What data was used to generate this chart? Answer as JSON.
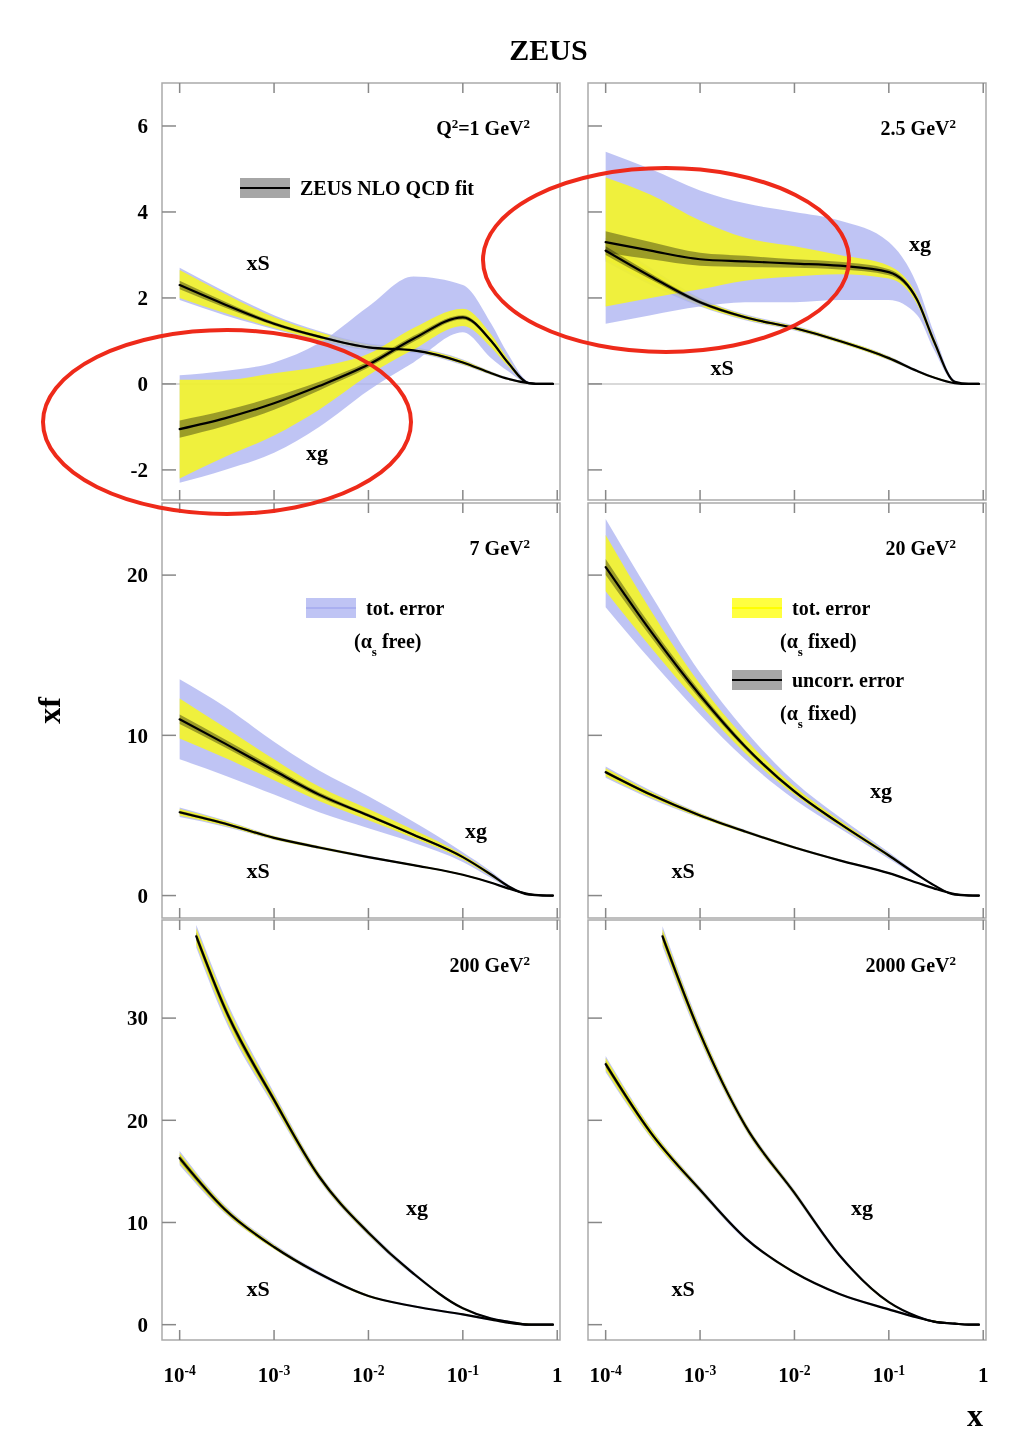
{
  "chart_data": [
    {
      "type": "line",
      "title": "ZEUS",
      "subtitle": "Q$^{2}$=1 GeV$^{2}$",
      "log": "x",
      "tick_labels": "y",
      "legend": "top right",
      "xlim": [
        6.5e-05,
        1.07
      ],
      "ylim": [
        -2.7,
        7
      ],
      "yticks": [
        -2,
        0,
        2,
        4,
        6
      ],
      "xticks": [
        0.0001,
        0.001,
        0.01,
        0.1,
        1
      ],
      "x": [
        0.0001,
        0.0003,
        0.001,
        0.003,
        0.01,
        0.03,
        0.1,
        0.2,
        0.3,
        0.5,
        0.7,
        0.9
      ],
      "ref_lines": [
        {
          "axis": "y",
          "value": 0,
          "color": "#cccccc"
        }
      ],
      "annotations": [
        "xS",
        "xg"
      ],
      "series": [
        {
          "color": "#aab0f0",
          "values": [
            null,
            null,
            null,
            null,
            null,
            null,
            null,
            null,
            null,
            null,
            null,
            null
          ],
          "lower": [
            1.95,
            1.6,
            1.27,
            1.0,
            0.78,
            0.72,
            0.44,
            0.21,
            0.09,
            0.01,
            0,
            0
          ],
          "upper": [
            2.7,
            2.15,
            1.6,
            1.23,
            0.94,
            0.86,
            0.57,
            0.29,
            0.15,
            0.03,
            0,
            0
          ]
        },
        {
          "color": "#ffff00",
          "values": [
            null,
            null,
            null,
            null,
            null,
            null,
            null,
            null,
            null,
            null,
            null,
            null
          ],
          "lower": [
            2.0,
            1.65,
            1.3,
            1.02,
            0.8,
            0.74,
            0.46,
            0.22,
            0.1,
            0.01,
            0,
            0
          ],
          "upper": [
            2.65,
            2.1,
            1.55,
            1.2,
            0.92,
            0.84,
            0.55,
            0.28,
            0.14,
            0.03,
            0,
            0
          ]
        },
        {
          "color": "#aab0f0",
          "values": [
            null,
            null,
            null,
            null,
            null,
            null,
            null,
            null,
            null,
            null,
            null,
            null
          ],
          "lower": [
            -2.3,
            -2.0,
            -1.6,
            -1.0,
            -0.15,
            0.5,
            1.2,
            0.6,
            0.3,
            0.01,
            0,
            0
          ],
          "upper": [
            0.2,
            0.3,
            0.5,
            0.95,
            1.8,
            2.5,
            2.3,
            1.4,
            0.7,
            0.05,
            0,
            0
          ]
        },
        {
          "color": "#ffff00",
          "values": [
            null,
            null,
            null,
            null,
            null,
            null,
            null,
            null,
            null,
            null,
            null,
            null
          ],
          "lower": [
            -2.2,
            -1.7,
            -1.2,
            -0.6,
            0.2,
            0.8,
            1.35,
            0.85,
            0.42,
            0.01,
            0,
            0
          ],
          "upper": [
            0.1,
            0.1,
            0.25,
            0.4,
            0.7,
            1.3,
            1.75,
            1.15,
            0.58,
            0.03,
            0,
            0
          ]
        },
        {
          "color": "#000000",
          "values": [
            2.3,
            1.85,
            1.4,
            1.1,
            0.85,
            0.78,
            0.5,
            0.25,
            0.12,
            0.02,
            0,
            0
          ],
          "lower": [
            2.2,
            1.78,
            1.36,
            1.07,
            0.83,
            0.76,
            0.48,
            0.24,
            0.11,
            0.02,
            0,
            0
          ],
          "upper": [
            2.4,
            1.92,
            1.44,
            1.13,
            0.87,
            0.8,
            0.52,
            0.26,
            0.13,
            0.02,
            0,
            0
          ]
        },
        {
          "name": "ZEUS NLO QCD fit",
          "color": "#000000",
          "values": [
            -1.05,
            -0.8,
            -0.45,
            -0.05,
            0.45,
            1.05,
            1.55,
            1.0,
            0.5,
            0.02,
            0,
            0
          ],
          "lower": [
            -1.25,
            -0.98,
            -0.6,
            -0.15,
            0.38,
            0.98,
            1.5,
            0.96,
            0.47,
            0.02,
            0,
            0
          ],
          "upper": [
            -0.85,
            -0.62,
            -0.3,
            0.05,
            0.52,
            1.12,
            1.6,
            1.04,
            0.53,
            0.02,
            0,
            0
          ]
        }
      ]
    },
    {
      "type": "line",
      "subtitle": "2.5 GeV$^{2}$",
      "log": "x",
      "tick_labels": false,
      "xlim": [
        6.5e-05,
        1.07
      ],
      "ylim": [
        -2.7,
        7
      ],
      "yticks": [
        -2,
        0,
        2,
        4,
        6
      ],
      "xticks": [
        0.0001,
        0.001,
        0.01,
        0.1,
        1
      ],
      "x": [
        0.0001,
        0.0003,
        0.001,
        0.003,
        0.01,
        0.03,
        0.1,
        0.2,
        0.3,
        0.5,
        0.7,
        0.9
      ],
      "ref_lines": [
        {
          "axis": "y",
          "value": 0,
          "color": "#cccccc"
        }
      ],
      "annotations": [
        "xg",
        "xS"
      ],
      "series": [
        {
          "color": "#aab0f0",
          "values": [
            null,
            null,
            null,
            null,
            null,
            null,
            null,
            null,
            null,
            null,
            null,
            null
          ],
          "lower": [
            2.85,
            2.3,
            1.8,
            1.48,
            1.24,
            0.95,
            0.55,
            0.27,
            0.13,
            0.01,
            0,
            0
          ],
          "upper": [
            3.4,
            2.7,
            2.0,
            1.62,
            1.36,
            1.05,
            0.65,
            0.33,
            0.17,
            0.03,
            0,
            0
          ]
        },
        {
          "color": "#ffff00",
          "values": [
            null,
            null,
            null,
            null,
            null,
            null,
            null,
            null,
            null,
            null,
            null,
            null
          ],
          "lower": [
            2.9,
            2.35,
            1.82,
            1.5,
            1.26,
            0.96,
            0.56,
            0.28,
            0.13,
            0.01,
            0,
            0
          ],
          "upper": [
            3.35,
            2.65,
            1.98,
            1.6,
            1.34,
            1.04,
            0.64,
            0.32,
            0.17,
            0.03,
            0,
            0
          ]
        },
        {
          "color": "#aab0f0",
          "values": [
            null,
            null,
            null,
            null,
            null,
            null,
            null,
            null,
            null,
            null,
            null,
            null
          ],
          "lower": [
            1.4,
            1.6,
            1.8,
            1.9,
            1.9,
            1.95,
            1.95,
            1.6,
            0.8,
            0.03,
            0,
            0
          ],
          "upper": [
            5.4,
            5.0,
            4.5,
            4.2,
            4.0,
            3.8,
            3.3,
            2.3,
            1.2,
            0.08,
            0,
            0
          ]
        },
        {
          "color": "#ffff00",
          "values": [
            null,
            null,
            null,
            null,
            null,
            null,
            null,
            null,
            null,
            null,
            null,
            null
          ],
          "lower": [
            1.8,
            2.0,
            2.2,
            2.4,
            2.5,
            2.55,
            2.45,
            1.85,
            0.92,
            0.04,
            0,
            0
          ],
          "upper": [
            4.8,
            4.4,
            3.8,
            3.4,
            3.2,
            3.0,
            2.75,
            2.05,
            1.08,
            0.06,
            0,
            0
          ]
        },
        {
          "color": "#000000",
          "values": [
            3.1,
            2.5,
            1.9,
            1.55,
            1.3,
            1.0,
            0.6,
            0.3,
            0.15,
            0.02,
            0,
            0
          ],
          "lower": [
            3.0,
            2.43,
            1.86,
            1.52,
            1.28,
            0.98,
            0.58,
            0.29,
            0.14,
            0.02,
            0,
            0
          ],
          "upper": [
            3.2,
            2.57,
            1.94,
            1.58,
            1.32,
            1.02,
            0.62,
            0.31,
            0.16,
            0.02,
            0,
            0
          ]
        },
        {
          "color": "#000000",
          "values": [
            3.3,
            3.1,
            2.9,
            2.85,
            2.8,
            2.75,
            2.6,
            1.95,
            1.0,
            0.05,
            0,
            0
          ],
          "lower": [
            3.05,
            2.9,
            2.75,
            2.72,
            2.7,
            2.66,
            2.53,
            1.9,
            0.97,
            0.05,
            0,
            0
          ],
          "upper": [
            3.55,
            3.3,
            3.05,
            2.98,
            2.9,
            2.84,
            2.67,
            2.0,
            1.03,
            0.05,
            0,
            0
          ]
        }
      ]
    },
    {
      "type": "line",
      "subtitle": "7 GeV$^{2}$",
      "ylabel": "xf",
      "log": "x",
      "tick_labels": "y",
      "legend": "top",
      "xlim": [
        6.5e-05,
        1.07
      ],
      "ylim": [
        -1.4,
        24.5
      ],
      "yticks": [
        0,
        10,
        20
      ],
      "xticks": [
        0.0001,
        0.001,
        0.01,
        0.1,
        1
      ],
      "x": [
        0.0001,
        0.0003,
        0.001,
        0.003,
        0.01,
        0.03,
        0.1,
        0.2,
        0.3,
        0.5,
        0.7,
        0.9
      ],
      "annotations": [
        "xg",
        "xS"
      ],
      "series": [
        {
          "color": "#aab0f0",
          "values": [
            null,
            null,
            null,
            null,
            null,
            null,
            null,
            null,
            null,
            null,
            null,
            null
          ],
          "lower": [
            4.9,
            4.3,
            3.48,
            2.9,
            2.32,
            1.84,
            1.25,
            0.76,
            0.42,
            0.09,
            0.02,
            0
          ],
          "upper": [
            5.5,
            4.7,
            3.72,
            3.1,
            2.48,
            1.96,
            1.35,
            0.84,
            0.48,
            0.11,
            0.02,
            0
          ]
        },
        {
          "color": "#ffff00",
          "values": [
            null,
            null,
            null,
            null,
            null,
            null,
            null,
            null,
            null,
            null,
            null,
            null
          ],
          "lower": [
            5.0,
            4.35,
            3.5,
            2.92,
            2.34,
            1.85,
            1.26,
            0.77,
            0.43,
            0.09,
            0.02,
            0
          ],
          "upper": [
            5.4,
            4.65,
            3.7,
            3.08,
            2.46,
            1.95,
            1.34,
            0.83,
            0.47,
            0.11,
            0.02,
            0
          ]
        },
        {
          "name": "tot. error (α$_{s}$ free)",
          "color": "#aab0f0",
          "values": [
            null,
            null,
            null,
            null,
            null,
            null,
            null,
            null,
            null,
            null,
            null,
            null
          ],
          "lower": [
            8.5,
            7.5,
            6.3,
            5.2,
            4.2,
            3.3,
            2.1,
            1.1,
            0.5,
            0.03,
            0,
            0
          ],
          "upper": [
            13.5,
            11.8,
            9.6,
            7.8,
            6.2,
            4.6,
            2.7,
            1.5,
            0.7,
            0.07,
            0,
            0
          ]
        },
        {
          "color": "#ffff00",
          "values": [
            null,
            null,
            null,
            null,
            null,
            null,
            null,
            null,
            null,
            null,
            null,
            null
          ],
          "lower": [
            9.8,
            8.6,
            7.2,
            5.9,
            4.7,
            3.6,
            2.25,
            1.2,
            0.55,
            0.04,
            0,
            0
          ],
          "upper": [
            12.3,
            10.5,
            8.5,
            6.8,
            5.4,
            4.1,
            2.55,
            1.4,
            0.65,
            0.06,
            0,
            0
          ]
        },
        {
          "color": "#000000",
          "values": [
            5.2,
            4.5,
            3.6,
            3.0,
            2.4,
            1.9,
            1.3,
            0.8,
            0.45,
            0.1,
            0.02,
            0
          ],
          "lower": [
            5.1,
            4.42,
            3.54,
            2.95,
            2.36,
            1.87,
            1.28,
            0.78,
            0.44,
            0.1,
            0.02,
            0
          ],
          "upper": [
            5.3,
            4.58,
            3.66,
            3.05,
            2.44,
            1.93,
            1.32,
            0.82,
            0.46,
            0.1,
            0.02,
            0
          ]
        },
        {
          "color": "#000000",
          "values": [
            11.0,
            9.5,
            7.8,
            6.3,
            5.0,
            3.8,
            2.4,
            1.3,
            0.6,
            0.05,
            0,
            0
          ],
          "lower": [
            10.7,
            9.25,
            7.6,
            6.15,
            4.9,
            3.72,
            2.35,
            1.27,
            0.58,
            0.05,
            0,
            0
          ],
          "upper": [
            11.3,
            9.75,
            8.0,
            6.45,
            5.1,
            3.88,
            2.45,
            1.33,
            0.62,
            0.05,
            0,
            0
          ]
        }
      ]
    },
    {
      "type": "line",
      "subtitle": "20 GeV$^{2}$",
      "log": "x",
      "tick_labels": false,
      "legend": "top",
      "xlim": [
        6.5e-05,
        1.07
      ],
      "ylim": [
        -1.4,
        24.5
      ],
      "yticks": [
        0,
        10,
        20
      ],
      "xticks": [
        0.0001,
        0.001,
        0.01,
        0.1,
        1
      ],
      "x": [
        0.0001,
        0.0003,
        0.001,
        0.003,
        0.01,
        0.03,
        0.1,
        0.2,
        0.3,
        0.5,
        0.7,
        0.9
      ],
      "annotations": [
        "xg",
        "xS"
      ],
      "series": [
        {
          "color": "#aab0f0",
          "values": [
            null,
            null,
            null,
            null,
            null,
            null,
            null,
            null,
            null,
            null,
            null,
            null
          ],
          "lower": [
            7.35,
            6.05,
            4.85,
            3.9,
            2.92,
            2.14,
            1.35,
            0.76,
            0.42,
            0.09,
            0.02,
            0
          ],
          "upper": [
            8.05,
            6.55,
            5.15,
            4.1,
            3.08,
            2.26,
            1.45,
            0.84,
            0.48,
            0.11,
            0.02,
            0
          ]
        },
        {
          "color": "#ffff00",
          "values": [
            null,
            null,
            null,
            null,
            null,
            null,
            null,
            null,
            null,
            null,
            null,
            null
          ],
          "lower": [
            7.45,
            6.12,
            4.88,
            3.92,
            2.94,
            2.15,
            1.36,
            0.77,
            0.43,
            0.09,
            0.02,
            0
          ],
          "upper": [
            7.95,
            6.48,
            5.12,
            4.08,
            3.06,
            2.25,
            1.44,
            0.83,
            0.47,
            0.11,
            0.02,
            0
          ]
        },
        {
          "color": "#aab0f0",
          "values": [
            null,
            null,
            null,
            null,
            null,
            null,
            null,
            null,
            null,
            null,
            null,
            null
          ],
          "lower": [
            18.0,
            14.7,
            11.3,
            8.5,
            6.0,
            4.2,
            2.3,
            1.2,
            0.6,
            0.03,
            0,
            0
          ],
          "upper": [
            23.5,
            18.8,
            13.9,
            10.3,
            7.1,
            4.9,
            2.7,
            1.4,
            0.7,
            0.07,
            0,
            0
          ]
        },
        {
          "name": "tot. error (α$_{s}$ fixed)",
          "color": "#ffff00",
          "values": [
            null,
            null,
            null,
            null,
            null,
            null,
            null,
            null,
            null,
            null,
            null,
            null
          ],
          "lower": [
            19.0,
            15.5,
            11.9,
            8.9,
            6.3,
            4.35,
            2.4,
            1.25,
            0.62,
            0.04,
            0,
            0
          ],
          "upper": [
            22.5,
            17.8,
            13.2,
            9.8,
            6.8,
            4.7,
            2.6,
            1.35,
            0.68,
            0.06,
            0,
            0
          ]
        },
        {
          "color": "#000000",
          "values": [
            7.7,
            6.3,
            5.0,
            4.0,
            3.0,
            2.2,
            1.4,
            0.8,
            0.45,
            0.1,
            0.02,
            0
          ],
          "lower": [
            7.6,
            6.22,
            4.94,
            3.96,
            2.97,
            2.18,
            1.38,
            0.79,
            0.44,
            0.1,
            0.02,
            0
          ],
          "upper": [
            7.8,
            6.38,
            5.06,
            4.04,
            3.03,
            2.22,
            1.42,
            0.81,
            0.46,
            0.1,
            0.02,
            0
          ]
        },
        {
          "name": "uncorr. error (α$_{s}$ fixed)",
          "color": "#000000",
          "values": [
            20.5,
            16.5,
            12.5,
            9.3,
            6.5,
            4.5,
            2.5,
            1.3,
            0.65,
            0.05,
            0,
            0
          ],
          "lower": [
            20.0,
            16.15,
            12.25,
            9.15,
            6.4,
            4.44,
            2.46,
            1.28,
            0.64,
            0.05,
            0,
            0
          ],
          "upper": [
            21.0,
            16.85,
            12.75,
            9.45,
            6.6,
            4.56,
            2.54,
            1.32,
            0.66,
            0.05,
            0,
            0
          ]
        }
      ]
    },
    {
      "type": "line",
      "subtitle": "200 GeV$^{2}$",
      "log": "x",
      "xlim": [
        6.5e-05,
        1.07
      ],
      "ylim": [
        -1.5,
        39.6
      ],
      "yticks": [
        0,
        10,
        20,
        30
      ],
      "xticks": [
        {
          "value": 0.0001,
          "label": "10$^{-4}$"
        },
        {
          "value": 0.001,
          "label": "10$^{-3}$"
        },
        {
          "value": 0.01,
          "label": "10$^{-2}$"
        },
        {
          "value": 0.1,
          "label": "10$^{-1}$"
        },
        1
      ],
      "x": [
        0.0001,
        0.0003,
        0.001,
        0.003,
        0.01,
        0.03,
        0.1,
        0.2,
        0.3,
        0.5,
        0.7,
        0.9
      ],
      "annotations": [
        "xg",
        "xS"
      ],
      "series": [
        {
          "color": "#aab0f0",
          "values": [
            null,
            null,
            null,
            null,
            null,
            null,
            null,
            null,
            null,
            null,
            null,
            null
          ],
          "lower": [
            15.6,
            10.9,
            7.4,
            4.8,
            2.7,
            1.7,
            0.9,
            0.4,
            0.2,
            0,
            0,
            0
          ],
          "upper": [
            17.0,
            11.7,
            7.9,
            5.2,
            2.9,
            1.9,
            1.1,
            0.6,
            0.3,
            0.1,
            0,
            0
          ]
        },
        {
          "color": "#ffff00",
          "values": [
            null,
            null,
            null,
            null,
            null,
            null,
            null,
            null,
            null,
            null,
            null,
            null
          ],
          "lower": [
            15.8,
            11.0,
            7.4,
            4.9,
            2.7,
            1.8,
            1.0,
            0.5,
            0.2,
            0,
            0,
            0
          ],
          "upper": [
            16.8,
            11.6,
            7.8,
            5.1,
            2.9,
            1.8,
            1.0,
            0.5,
            0.3,
            0.1,
            0,
            0
          ]
        },
        {
          "x": [
            0.00015,
            0.0003,
            0.001,
            0.003,
            0.01,
            0.03,
            0.1,
            0.2,
            0.3,
            0.5,
            0.7,
            0.9
          ],
          "color": "#aab0f0",
          "values": [
            null,
            null,
            null,
            null,
            null,
            null,
            null,
            null,
            null,
            null,
            null,
            null
          ],
          "lower": [
            36.9,
            29.9,
            21.3,
            14.1,
            8.7,
            4.8,
            1.5,
            0.5,
            0.2,
            0,
            0,
            0
          ],
          "upper": [
            39.1,
            32.1,
            22.7,
            14.9,
            9.3,
            5.2,
            1.7,
            0.7,
            0.4,
            0.1,
            0,
            0
          ]
        },
        {
          "x": [
            0.00015,
            0.0003,
            0.001,
            0.003,
            0.01,
            0.03,
            0.1,
            0.2,
            0.3,
            0.5,
            0.7,
            0.9
          ],
          "color": "#ffff00",
          "values": [
            null,
            null,
            null,
            null,
            null,
            null,
            null,
            null,
            null,
            null,
            null,
            null
          ],
          "lower": [
            37.2,
            30.2,
            21.5,
            14.2,
            8.8,
            4.9,
            1.5,
            0.6,
            0.3,
            0,
            0,
            0
          ],
          "upper": [
            38.8,
            31.8,
            22.5,
            14.8,
            9.2,
            5.1,
            1.7,
            0.6,
            0.3,
            0.1,
            0,
            0
          ]
        },
        {
          "color": "#000000",
          "values": [
            16.3,
            11.3,
            7.6,
            5.0,
            2.8,
            1.8,
            1.0,
            0.5,
            0.2,
            0,
            0,
            0
          ],
          "lower": [
            16.0,
            11.1,
            7.5,
            4.9,
            2.8,
            1.8,
            1.0,
            0.5,
            0.2,
            0,
            0,
            0
          ],
          "upper": [
            16.6,
            11.5,
            7.7,
            5.1,
            2.8,
            1.8,
            1.0,
            0.5,
            0.2,
            0,
            0,
            0
          ]
        },
        {
          "x": [
            0.00015,
            0.0003,
            0.001,
            0.003,
            0.01,
            0.03,
            0.1,
            0.2,
            0.3,
            0.5,
            0.7,
            0.9
          ],
          "color": "#000000",
          "values": [
            38,
            31,
            22,
            14.5,
            9.0,
            5.0,
            1.6,
            0.6,
            0.3,
            0,
            0,
            0
          ],
          "lower": [
            37.6,
            30.6,
            21.7,
            14.3,
            8.9,
            4.9,
            1.6,
            0.6,
            0.3,
            0,
            0,
            0
          ],
          "upper": [
            38.4,
            31.4,
            22.3,
            14.7,
            9.1,
            5.1,
            1.6,
            0.6,
            0.3,
            0,
            0,
            0
          ]
        }
      ]
    },
    {
      "type": "line",
      "subtitle": "2000 GeV$^{2}$",
      "xlabel": "x",
      "log": "x",
      "tick_labels": "x",
      "xlim": [
        6.5e-05,
        1.07
      ],
      "ylim": [
        -1.5,
        39.6
      ],
      "yticks": [
        0,
        10,
        20,
        30
      ],
      "xticks": [
        {
          "value": 0.0001,
          "label": "10$^{-4}$"
        },
        {
          "value": 0.001,
          "label": "10$^{-3}$"
        },
        {
          "value": 0.01,
          "label": "10$^{-2}$"
        },
        {
          "value": 0.1,
          "label": "10$^{-1}$"
        },
        1
      ],
      "x": [
        0.0001,
        0.0003,
        0.001,
        0.003,
        0.01,
        0.03,
        0.1,
        0.2,
        0.3,
        0.5,
        0.7,
        0.9
      ],
      "annotations": [
        "xg",
        "xS"
      ],
      "series": [
        {
          "color": "#aab0f0",
          "values": [
            null,
            null,
            null,
            null,
            null,
            null,
            null,
            null,
            null,
            null,
            null,
            null
          ],
          "lower": [
            24.7,
            18.3,
            12.9,
            8.3,
            5.0,
            2.9,
            1.4,
            0.6,
            0.3,
            0,
            0,
            0
          ],
          "upper": [
            26.3,
            19.3,
            13.5,
            8.7,
            5.2,
            3.1,
            1.6,
            0.8,
            0.4,
            0.1,
            0,
            0
          ]
        },
        {
          "color": "#ffff00",
          "values": [
            null,
            null,
            null,
            null,
            null,
            null,
            null,
            null,
            null,
            null,
            null,
            null
          ],
          "lower": [
            24.9,
            18.4,
            13.0,
            8.4,
            5.0,
            3.0,
            1.5,
            0.7,
            0.3,
            0.1,
            0,
            0
          ],
          "upper": [
            26.1,
            19.2,
            13.4,
            8.6,
            5.2,
            3.0,
            1.5,
            0.7,
            0.4,
            0.1,
            0,
            0
          ]
        },
        {
          "x": [
            0.0004,
            0.001,
            0.003,
            0.01,
            0.03,
            0.1,
            0.2,
            0.3,
            0.5,
            0.7,
            0.9
          ],
          "color": "#aab0f0",
          "values": [
            null,
            null,
            null,
            null,
            null,
            null,
            null,
            null,
            null,
            null,
            null
          ],
          "lower": [
            37.0,
            27.8,
            19.1,
            12.6,
            6.6,
            2.1,
            0.7,
            0.3,
            0,
            0,
            0
          ],
          "upper": [
            39.0,
            29.2,
            19.9,
            13.2,
            7.0,
            2.3,
            0.9,
            0.4,
            0.1,
            0,
            0
          ]
        },
        {
          "x": [
            0.0004,
            0.001,
            0.003,
            0.01,
            0.03,
            0.1,
            0.2,
            0.3,
            0.5,
            0.7,
            0.9
          ],
          "color": "#ffff00",
          "values": [
            null,
            null,
            null,
            null,
            null,
            null,
            null,
            null,
            null,
            null,
            null
          ],
          "lower": [
            37.3,
            28.0,
            19.2,
            12.7,
            6.7,
            2.1,
            0.8,
            0.3,
            0.1,
            0,
            0
          ],
          "upper": [
            38.7,
            29.0,
            19.8,
            13.1,
            6.9,
            2.3,
            0.8,
            0.4,
            0.1,
            0,
            0
          ]
        },
        {
          "color": "#000000",
          "values": [
            25.5,
            18.8,
            13.2,
            8.5,
            5.1,
            3.0,
            1.5,
            0.7,
            0.3,
            0.1,
            0,
            0
          ],
          "lower": [
            25.2,
            18.6,
            13.1,
            8.4,
            5.1,
            3.0,
            1.5,
            0.7,
            0.3,
            0.1,
            0,
            0
          ],
          "upper": [
            25.8,
            19.0,
            13.3,
            8.6,
            5.1,
            3.0,
            1.5,
            0.7,
            0.3,
            0.1,
            0,
            0
          ]
        },
        {
          "x": [
            0.0004,
            0.001,
            0.003,
            0.01,
            0.03,
            0.1,
            0.2,
            0.3,
            0.5,
            0.7,
            0.9
          ],
          "color": "#000000",
          "values": [
            38,
            28.5,
            19.5,
            12.9,
            6.8,
            2.2,
            0.8,
            0.3,
            0.1,
            0,
            0
          ],
          "lower": [
            37.6,
            28.2,
            19.4,
            12.8,
            6.8,
            2.2,
            0.8,
            0.3,
            0.1,
            0,
            0
          ],
          "upper": [
            38.4,
            28.8,
            19.6,
            13.0,
            6.8,
            2.2,
            0.8,
            0.3,
            0.1,
            0,
            0
          ]
        }
      ]
    }
  ]
}
